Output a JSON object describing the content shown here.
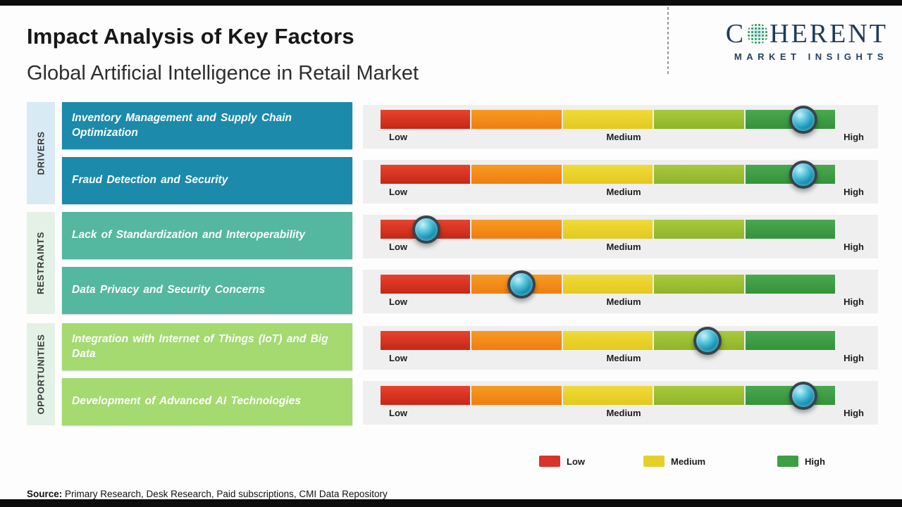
{
  "header": {
    "title": "Impact Analysis of Key Factors",
    "subtitle": "Global Artificial Intelligence in Retail Market"
  },
  "logo": {
    "part1": "C",
    "part2": "HERENT",
    "tagline": "MARKET INSIGHTS",
    "globe_icon": "dotted-globe-icon",
    "color": "#203d59"
  },
  "groups": [
    {
      "label": "DRIVERS"
    },
    {
      "label": "RESTRAINTS"
    },
    {
      "label": "OPPORTUNITIES"
    }
  ],
  "rows": [
    {
      "group": "DRIVERS",
      "factor": "Inventory Management and Supply Chain Optimization",
      "value_pct": 93,
      "impact": "High"
    },
    {
      "group": "DRIVERS",
      "factor": "Fraud Detection and Security",
      "value_pct": 93,
      "impact": "High"
    },
    {
      "group": "RESTRAINTS",
      "factor": "Lack of Standardization and Interoperability",
      "value_pct": 10,
      "impact": "Low"
    },
    {
      "group": "RESTRAINTS",
      "factor": "Data Privacy and Security Concerns",
      "value_pct": 31,
      "impact": "Low-Medium"
    },
    {
      "group": "OPPORTUNITIES",
      "factor": "Integration with Internet of Things (IoT) and Big Data",
      "value_pct": 72,
      "impact": "Medium-High"
    },
    {
      "group": "OPPORTUNITIES",
      "factor": "Development of Advanced AI Technologies",
      "value_pct": 93,
      "impact": "High"
    }
  ],
  "scale_labels": {
    "low": "Low",
    "medium": "Medium",
    "high": "High"
  },
  "legend": [
    {
      "label": "Low",
      "color": "#d7342b"
    },
    {
      "label": "Medium",
      "color": "#e5d02b"
    },
    {
      "label": "High",
      "color": "#3d9e45"
    }
  ],
  "source": {
    "prefix": "Source:",
    "text": "Primary Research, Desk Research, Paid subscriptions, CMI Data Repository"
  },
  "colors": {
    "drivers_box": "#1b8aab",
    "restraints_box": "#54b79f",
    "opportunities_box": "#a4da70",
    "drivers_strip": "#d8eaf3",
    "restraints_strip": "#e3f1e6",
    "opportunities_strip": "#e3f1e6",
    "bar_segments": [
      "#d7342b",
      "#f28c1c",
      "#e8d02a",
      "#9cbf34",
      "#3d9e45"
    ],
    "marker": "#1793b4"
  },
  "chart_data": {
    "type": "bar",
    "orientation": "horizontal",
    "title": "Impact Analysis of Key Factors",
    "subtitle": "Global Artificial Intelligence in Retail Market",
    "categories": [
      "Inventory Management and Supply Chain Optimization",
      "Fraud Detection and Security",
      "Lack of Standardization and Interoperability",
      "Data Privacy and Security Concerns",
      "Integration with Internet of Things (IoT) and Big Data",
      "Development of Advanced AI Technologies"
    ],
    "groups": [
      "Drivers",
      "Drivers",
      "Restraints",
      "Restraints",
      "Opportunities",
      "Opportunities"
    ],
    "series": [
      {
        "name": "Impact position (% of Low-High scale)",
        "values": [
          93,
          93,
          10,
          31,
          72,
          93
        ]
      }
    ],
    "impact_levels": [
      "High",
      "High",
      "Low",
      "Low-Medium",
      "Medium-High",
      "High"
    ],
    "scale": [
      "Low",
      "Medium",
      "High"
    ],
    "xlim_pct": [
      0,
      100
    ],
    "legend_entries": [
      "Low",
      "Medium",
      "High"
    ],
    "legend_position": "bottom",
    "grid": false
  }
}
